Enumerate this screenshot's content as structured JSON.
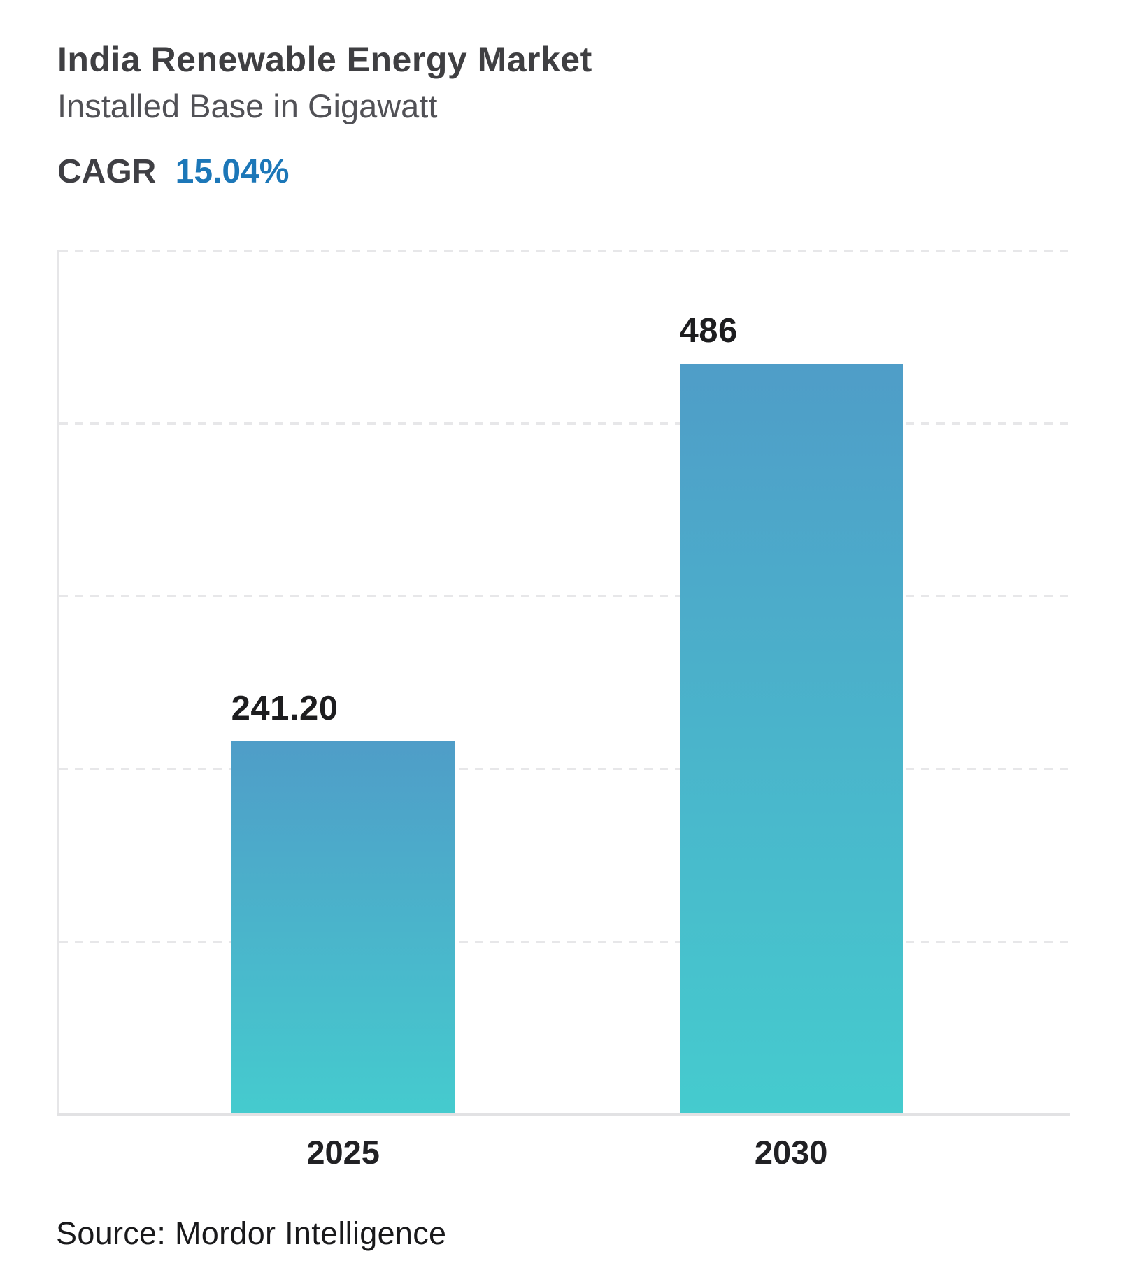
{
  "header": {
    "title": "India Renewable Energy Market",
    "subtitle": "Installed Base in Gigawatt",
    "cagr_label": "CAGR",
    "cagr_value": "15.04%"
  },
  "chart_data": {
    "type": "bar",
    "title": "India Renewable Energy Market",
    "subtitle": "Installed Base in Gigawatt",
    "cagr": "15.04%",
    "categories": [
      "2025",
      "2030"
    ],
    "values": [
      241.2,
      486
    ],
    "value_labels": [
      "241.20",
      "486"
    ],
    "unit": "Gigawatt",
    "ylabel": "Installed Base (GW)",
    "xlabel": "",
    "ylim": [
      0,
      560
    ],
    "gridlines": "horizontal-dashed",
    "legend": "none",
    "bar_label_position": "above-bar-left-aligned"
  },
  "footer": {
    "source": "Source: Mordor Intelligence"
  },
  "colors": {
    "accent_blue": "#1c77b8",
    "bar_top": "#4f9dc8",
    "bar_bottom": "#45cbce",
    "grid": "#e7e7e9",
    "axis": "#e2e2e4"
  }
}
